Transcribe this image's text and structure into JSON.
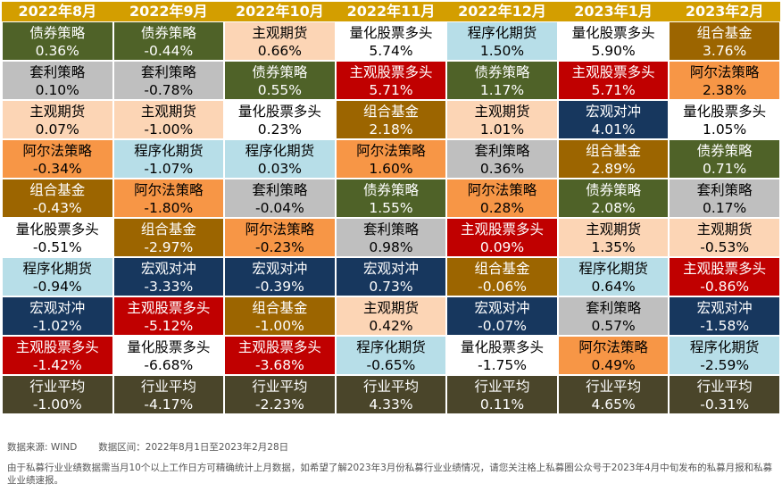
{
  "chart_data": {
    "type": "table",
    "columns": [
      "2022年8月",
      "2022年9月",
      "2022年10月",
      "2022年11月",
      "2022年12月",
      "2023年1月",
      "2023年2月"
    ],
    "rows": [
      [
        {
          "name": "债券策略",
          "value": "0.36%"
        },
        {
          "name": "债券策略",
          "value": "-0.44%"
        },
        {
          "name": "主观期货",
          "value": "0.66%"
        },
        {
          "name": "量化股票多头",
          "value": "5.74%"
        },
        {
          "name": "程序化期货",
          "value": "1.50%"
        },
        {
          "name": "量化股票多头",
          "value": "5.90%"
        },
        {
          "name": "组合基金",
          "value": "3.76%"
        }
      ],
      [
        {
          "name": "套利策略",
          "value": "0.10%"
        },
        {
          "name": "套利策略",
          "value": "-0.78%"
        },
        {
          "name": "债券策略",
          "value": "0.55%"
        },
        {
          "name": "主观股票多头",
          "value": "5.71%"
        },
        {
          "name": "债券策略",
          "value": "1.17%"
        },
        {
          "name": "主观股票多头",
          "value": "5.71%"
        },
        {
          "name": "阿尔法策略",
          "value": "2.38%"
        }
      ],
      [
        {
          "name": "主观期货",
          "value": "0.07%"
        },
        {
          "name": "主观期货",
          "value": "-1.00%"
        },
        {
          "name": "量化股票多头",
          "value": "0.23%"
        },
        {
          "name": "组合基金",
          "value": "2.18%"
        },
        {
          "name": "主观期货",
          "value": "1.01%"
        },
        {
          "name": "宏观对冲",
          "value": "4.01%"
        },
        {
          "name": "量化股票多头",
          "value": "1.05%"
        }
      ],
      [
        {
          "name": "阿尔法策略",
          "value": "-0.34%"
        },
        {
          "name": "程序化期货",
          "value": "-1.07%"
        },
        {
          "name": "程序化期货",
          "value": "0.03%"
        },
        {
          "name": "阿尔法策略",
          "value": "1.60%"
        },
        {
          "name": "套利策略",
          "value": "0.36%"
        },
        {
          "name": "组合基金",
          "value": "2.89%"
        },
        {
          "name": "债券策略",
          "value": "0.71%"
        }
      ],
      [
        {
          "name": "组合基金",
          "value": "-0.43%"
        },
        {
          "name": "阿尔法策略",
          "value": "-1.80%"
        },
        {
          "name": "套利策略",
          "value": "-0.04%"
        },
        {
          "name": "债券策略",
          "value": "1.55%"
        },
        {
          "name": "阿尔法策略",
          "value": "0.28%"
        },
        {
          "name": "债券策略",
          "value": "2.08%"
        },
        {
          "name": "套利策略",
          "value": "0.17%"
        }
      ],
      [
        {
          "name": "量化股票多头",
          "value": "-0.51%"
        },
        {
          "name": "组合基金",
          "value": "-2.97%"
        },
        {
          "name": "阿尔法策略",
          "value": "-0.23%"
        },
        {
          "name": "套利策略",
          "value": "0.98%"
        },
        {
          "name": "主观股票多头",
          "value": "0.09%"
        },
        {
          "name": "主观期货",
          "value": "1.35%"
        },
        {
          "name": "主观期货",
          "value": "-0.53%"
        }
      ],
      [
        {
          "name": "程序化期货",
          "value": "-0.94%"
        },
        {
          "name": "宏观对冲",
          "value": "-3.33%"
        },
        {
          "name": "宏观对冲",
          "value": "-0.39%"
        },
        {
          "name": "宏观对冲",
          "value": "0.73%"
        },
        {
          "name": "组合基金",
          "value": "-0.06%"
        },
        {
          "name": "程序化期货",
          "value": "0.64%"
        },
        {
          "name": "主观股票多头",
          "value": "-0.86%"
        }
      ],
      [
        {
          "name": "宏观对冲",
          "value": "-1.02%"
        },
        {
          "name": "主观股票多头",
          "value": "-5.12%"
        },
        {
          "name": "组合基金",
          "value": "-1.00%"
        },
        {
          "name": "主观期货",
          "value": "0.42%"
        },
        {
          "name": "宏观对冲",
          "value": "-0.07%"
        },
        {
          "name": "套利策略",
          "value": "0.57%"
        },
        {
          "name": "宏观对冲",
          "value": "-1.58%"
        }
      ],
      [
        {
          "name": "主观股票多头",
          "value": "-1.42%"
        },
        {
          "name": "量化股票多头",
          "value": "-6.68%"
        },
        {
          "name": "主观股票多头",
          "value": "-3.68%"
        },
        {
          "name": "程序化期货",
          "value": "-0.65%"
        },
        {
          "name": "量化股票多头",
          "value": "-1.75%"
        },
        {
          "name": "阿尔法策略",
          "value": "0.49%"
        },
        {
          "name": "程序化期货",
          "value": "-2.59%"
        }
      ],
      [
        {
          "name": "行业平均",
          "value": "-1.00%"
        },
        {
          "name": "行业平均",
          "value": "-4.17%"
        },
        {
          "name": "行业平均",
          "value": "-2.23%"
        },
        {
          "name": "行业平均",
          "value": "4.33%"
        },
        {
          "name": "行业平均",
          "value": "0.11%"
        },
        {
          "name": "行业平均",
          "value": "4.65%"
        },
        {
          "name": "行业平均",
          "value": "-0.31%"
        }
      ]
    ],
    "strategy_colors": {
      "债券策略": {
        "bg": "#4f6228",
        "fg": "#ffffff"
      },
      "套利策略": {
        "bg": "#bfbfbf",
        "fg": "#000000"
      },
      "主观期货": {
        "bg": "#fcd5b5",
        "fg": "#000000"
      },
      "阿尔法策略": {
        "bg": "#f79646",
        "fg": "#000000"
      },
      "组合基金": {
        "bg": "#9c6500",
        "fg": "#ffffff"
      },
      "量化股票多头": {
        "bg": "#ffffff",
        "fg": "#000000"
      },
      "程序化期货": {
        "bg": "#b7dee8",
        "fg": "#000000"
      },
      "宏观对冲": {
        "bg": "#17375e",
        "fg": "#ffffff"
      },
      "主观股票多头": {
        "bg": "#c00000",
        "fg": "#ffffff"
      },
      "行业平均": {
        "bg": "#4a452a",
        "fg": "#ffffff"
      }
    },
    "header_color": "#d39e00"
  },
  "notes": {
    "source": "数据来源: WIND",
    "range": "数据区间：2022年8月1日至2023年2月28日",
    "disclaimer": "由于私募行业业绩数据需当月10个以上工作日方可精确统计上月数据，如希望了解2023年3月份私募行业业绩情况，请您关注格上私募圈公众号于2023年4月中旬发布的私募月报和私募业业绩速报。"
  }
}
